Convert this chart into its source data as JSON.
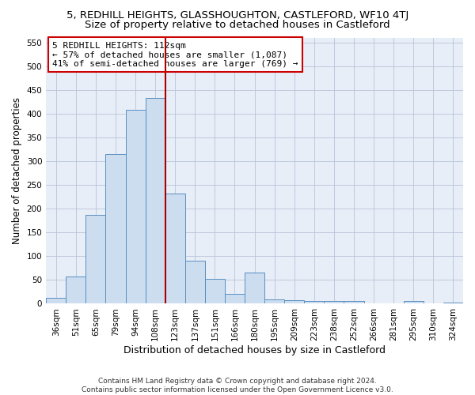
{
  "title": "5, REDHILL HEIGHTS, GLASSHOUGHTON, CASTLEFORD, WF10 4TJ",
  "subtitle": "Size of property relative to detached houses in Castleford",
  "xlabel": "Distribution of detached houses by size in Castleford",
  "ylabel": "Number of detached properties",
  "categories": [
    "36sqm",
    "51sqm",
    "65sqm",
    "79sqm",
    "94sqm",
    "108sqm",
    "123sqm",
    "137sqm",
    "151sqm",
    "166sqm",
    "180sqm",
    "195sqm",
    "209sqm",
    "223sqm",
    "238sqm",
    "252sqm",
    "266sqm",
    "281sqm",
    "295sqm",
    "310sqm",
    "324sqm"
  ],
  "values": [
    12,
    58,
    187,
    315,
    408,
    433,
    231,
    91,
    53,
    21,
    65,
    9,
    8,
    5,
    5,
    5,
    0,
    0,
    5,
    0,
    3
  ],
  "bar_color": "#ccddf0",
  "bar_edge_color": "#5a8fc0",
  "vline_index": 5.5,
  "vline_color": "#aa0000",
  "annotation_text": "5 REDHILL HEIGHTS: 112sqm\n← 57% of detached houses are smaller (1,087)\n41% of semi-detached houses are larger (769) →",
  "annotation_box_color": "#ffffff",
  "annotation_box_edge": "#cc0000",
  "ylim": [
    0,
    560
  ],
  "yticks": [
    0,
    50,
    100,
    150,
    200,
    250,
    300,
    350,
    400,
    450,
    500,
    550
  ],
  "ax_bg_color": "#e8eef8",
  "bg_color": "#ffffff",
  "grid_color": "#b8c4d8",
  "footer_line1": "Contains HM Land Registry data © Crown copyright and database right 2024.",
  "footer_line2": "Contains public sector information licensed under the Open Government Licence v3.0.",
  "title_fontsize": 9.5,
  "subtitle_fontsize": 9.5,
  "xlabel_fontsize": 9,
  "ylabel_fontsize": 8.5,
  "tick_fontsize": 7.5,
  "annotation_fontsize": 8,
  "footer_fontsize": 6.5
}
